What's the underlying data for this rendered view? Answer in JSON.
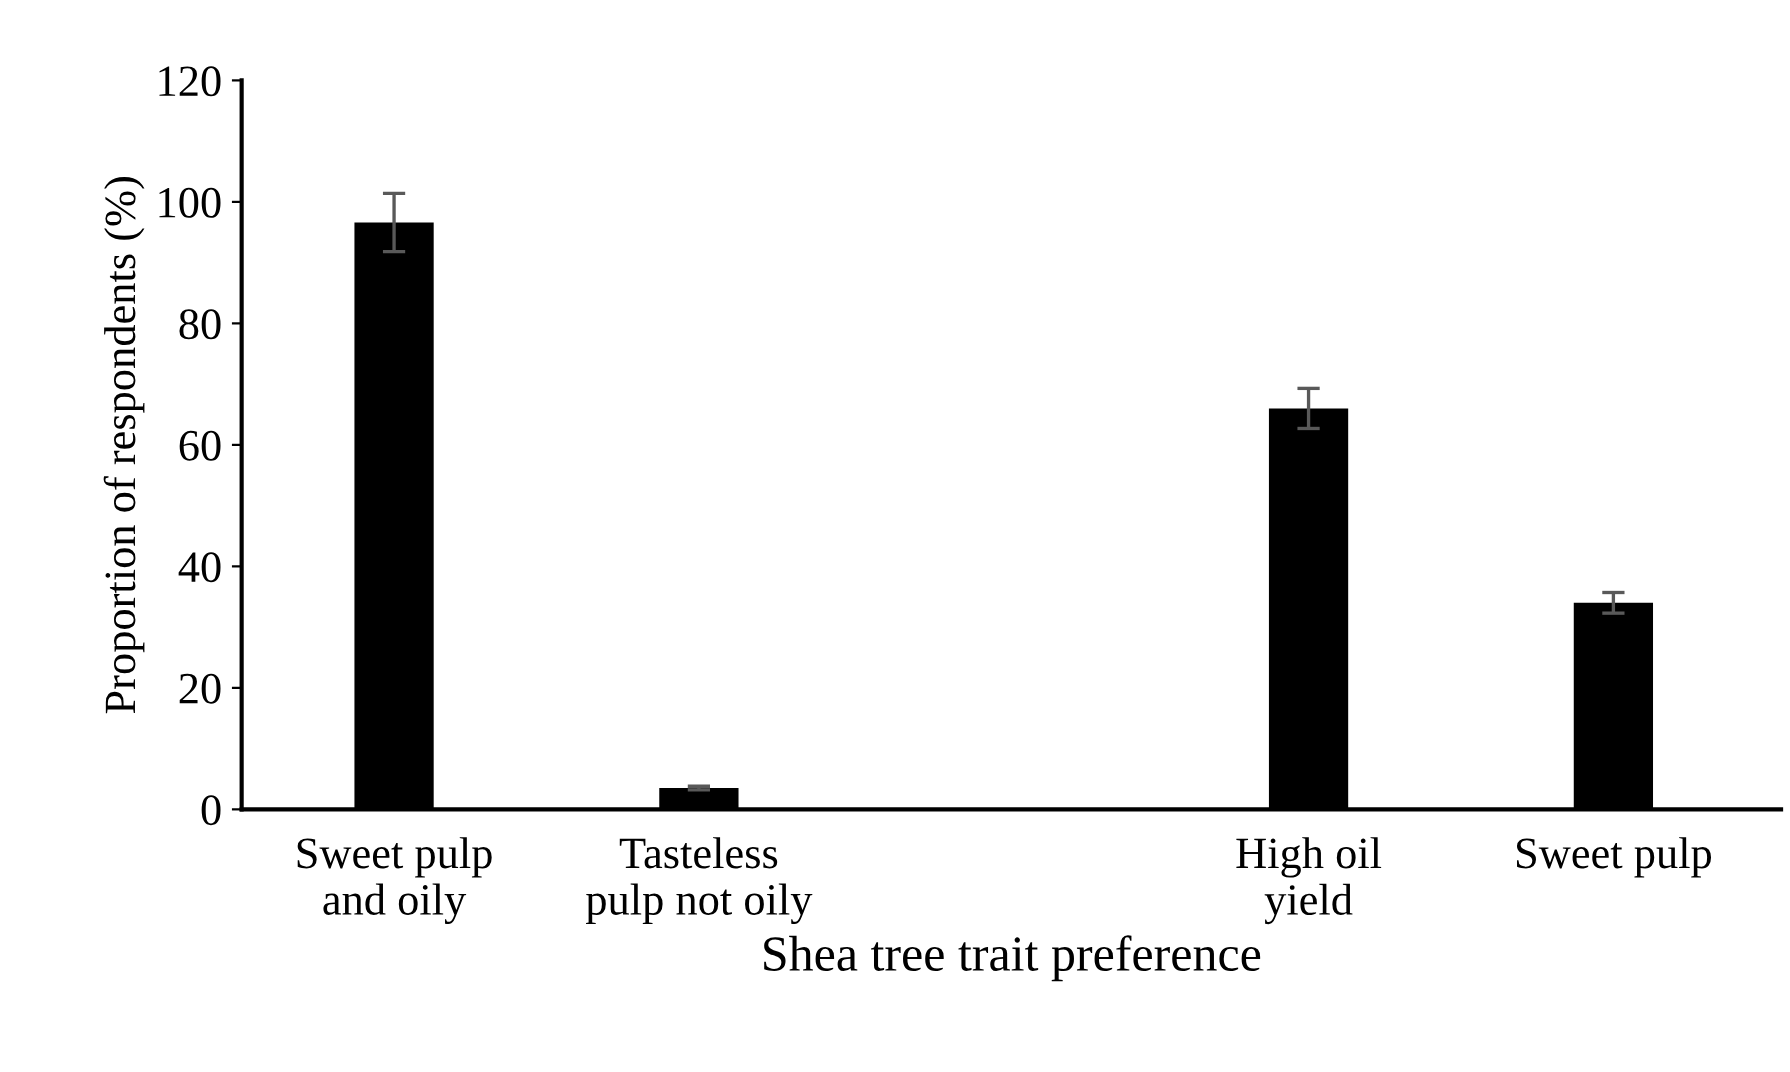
{
  "chart_data": {
    "type": "bar",
    "xlabel": "Shea tree trait preference",
    "ylabel": "Proportion of respondents (%)",
    "categories": [
      "Sweet pulp\nand oily",
      "Tasteless\npulp not oily",
      null,
      "High oil\nyield",
      "Sweet pulp"
    ],
    "values": [
      96.6,
      3.5,
      null,
      66.0,
      34.0
    ],
    "errors": [
      4.8,
      0.3,
      null,
      3.3,
      1.7
    ],
    "color": "#000000",
    "ylim": [
      0,
      120
    ],
    "yticks": [
      0,
      20,
      40,
      60,
      80,
      100,
      120
    ],
    "grid": false,
    "legend": false
  }
}
